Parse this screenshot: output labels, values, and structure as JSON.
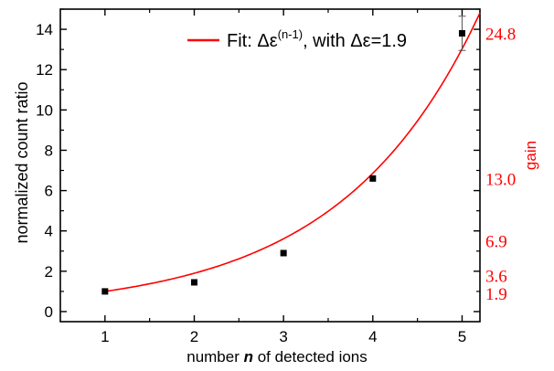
{
  "chart_data": {
    "type": "scatter",
    "xlabel": {
      "prefix": "number ",
      "var": "n",
      "suffix": " of detected ions"
    },
    "ylabel": "normalized count ratio",
    "y2label": "gain",
    "xlim": [
      0.5,
      5.2
    ],
    "ylim": [
      -0.5,
      15
    ],
    "x_ticks": [
      1,
      2,
      3,
      4,
      5
    ],
    "y_ticks": [
      0,
      2,
      4,
      6,
      8,
      10,
      12,
      14
    ],
    "grid": false,
    "legend_position": "top-right",
    "series": [
      {
        "kind": "points",
        "color": "#000000",
        "points": [
          {
            "x": 1,
            "y": 1.0
          },
          {
            "x": 2,
            "y": 1.45
          },
          {
            "x": 3,
            "y": 2.9
          },
          {
            "x": 4,
            "y": 6.6
          },
          {
            "x": 5,
            "y": 13.8,
            "yerr": 0.85
          }
        ]
      },
      {
        "kind": "fit",
        "color": "#ff0000",
        "base": 1.9,
        "x_range": [
          1,
          5.2
        ],
        "legend": {
          "prefix": "Fit: Δε",
          "exponent": "(n-1)",
          "suffix": ", with Δε=1.9"
        }
      }
    ],
    "gain_labels": [
      {
        "text": "24.8",
        "y": 13.8
      },
      {
        "text": "13.0",
        "y": 6.6
      },
      {
        "text": "6.9",
        "y": 3.5
      },
      {
        "text": "3.6",
        "y": 1.8
      },
      {
        "text": "1.9",
        "y": 0.9
      }
    ],
    "colors": {
      "axis": "#000000",
      "fit": "#ff0000",
      "gain": "#ff0000"
    }
  }
}
